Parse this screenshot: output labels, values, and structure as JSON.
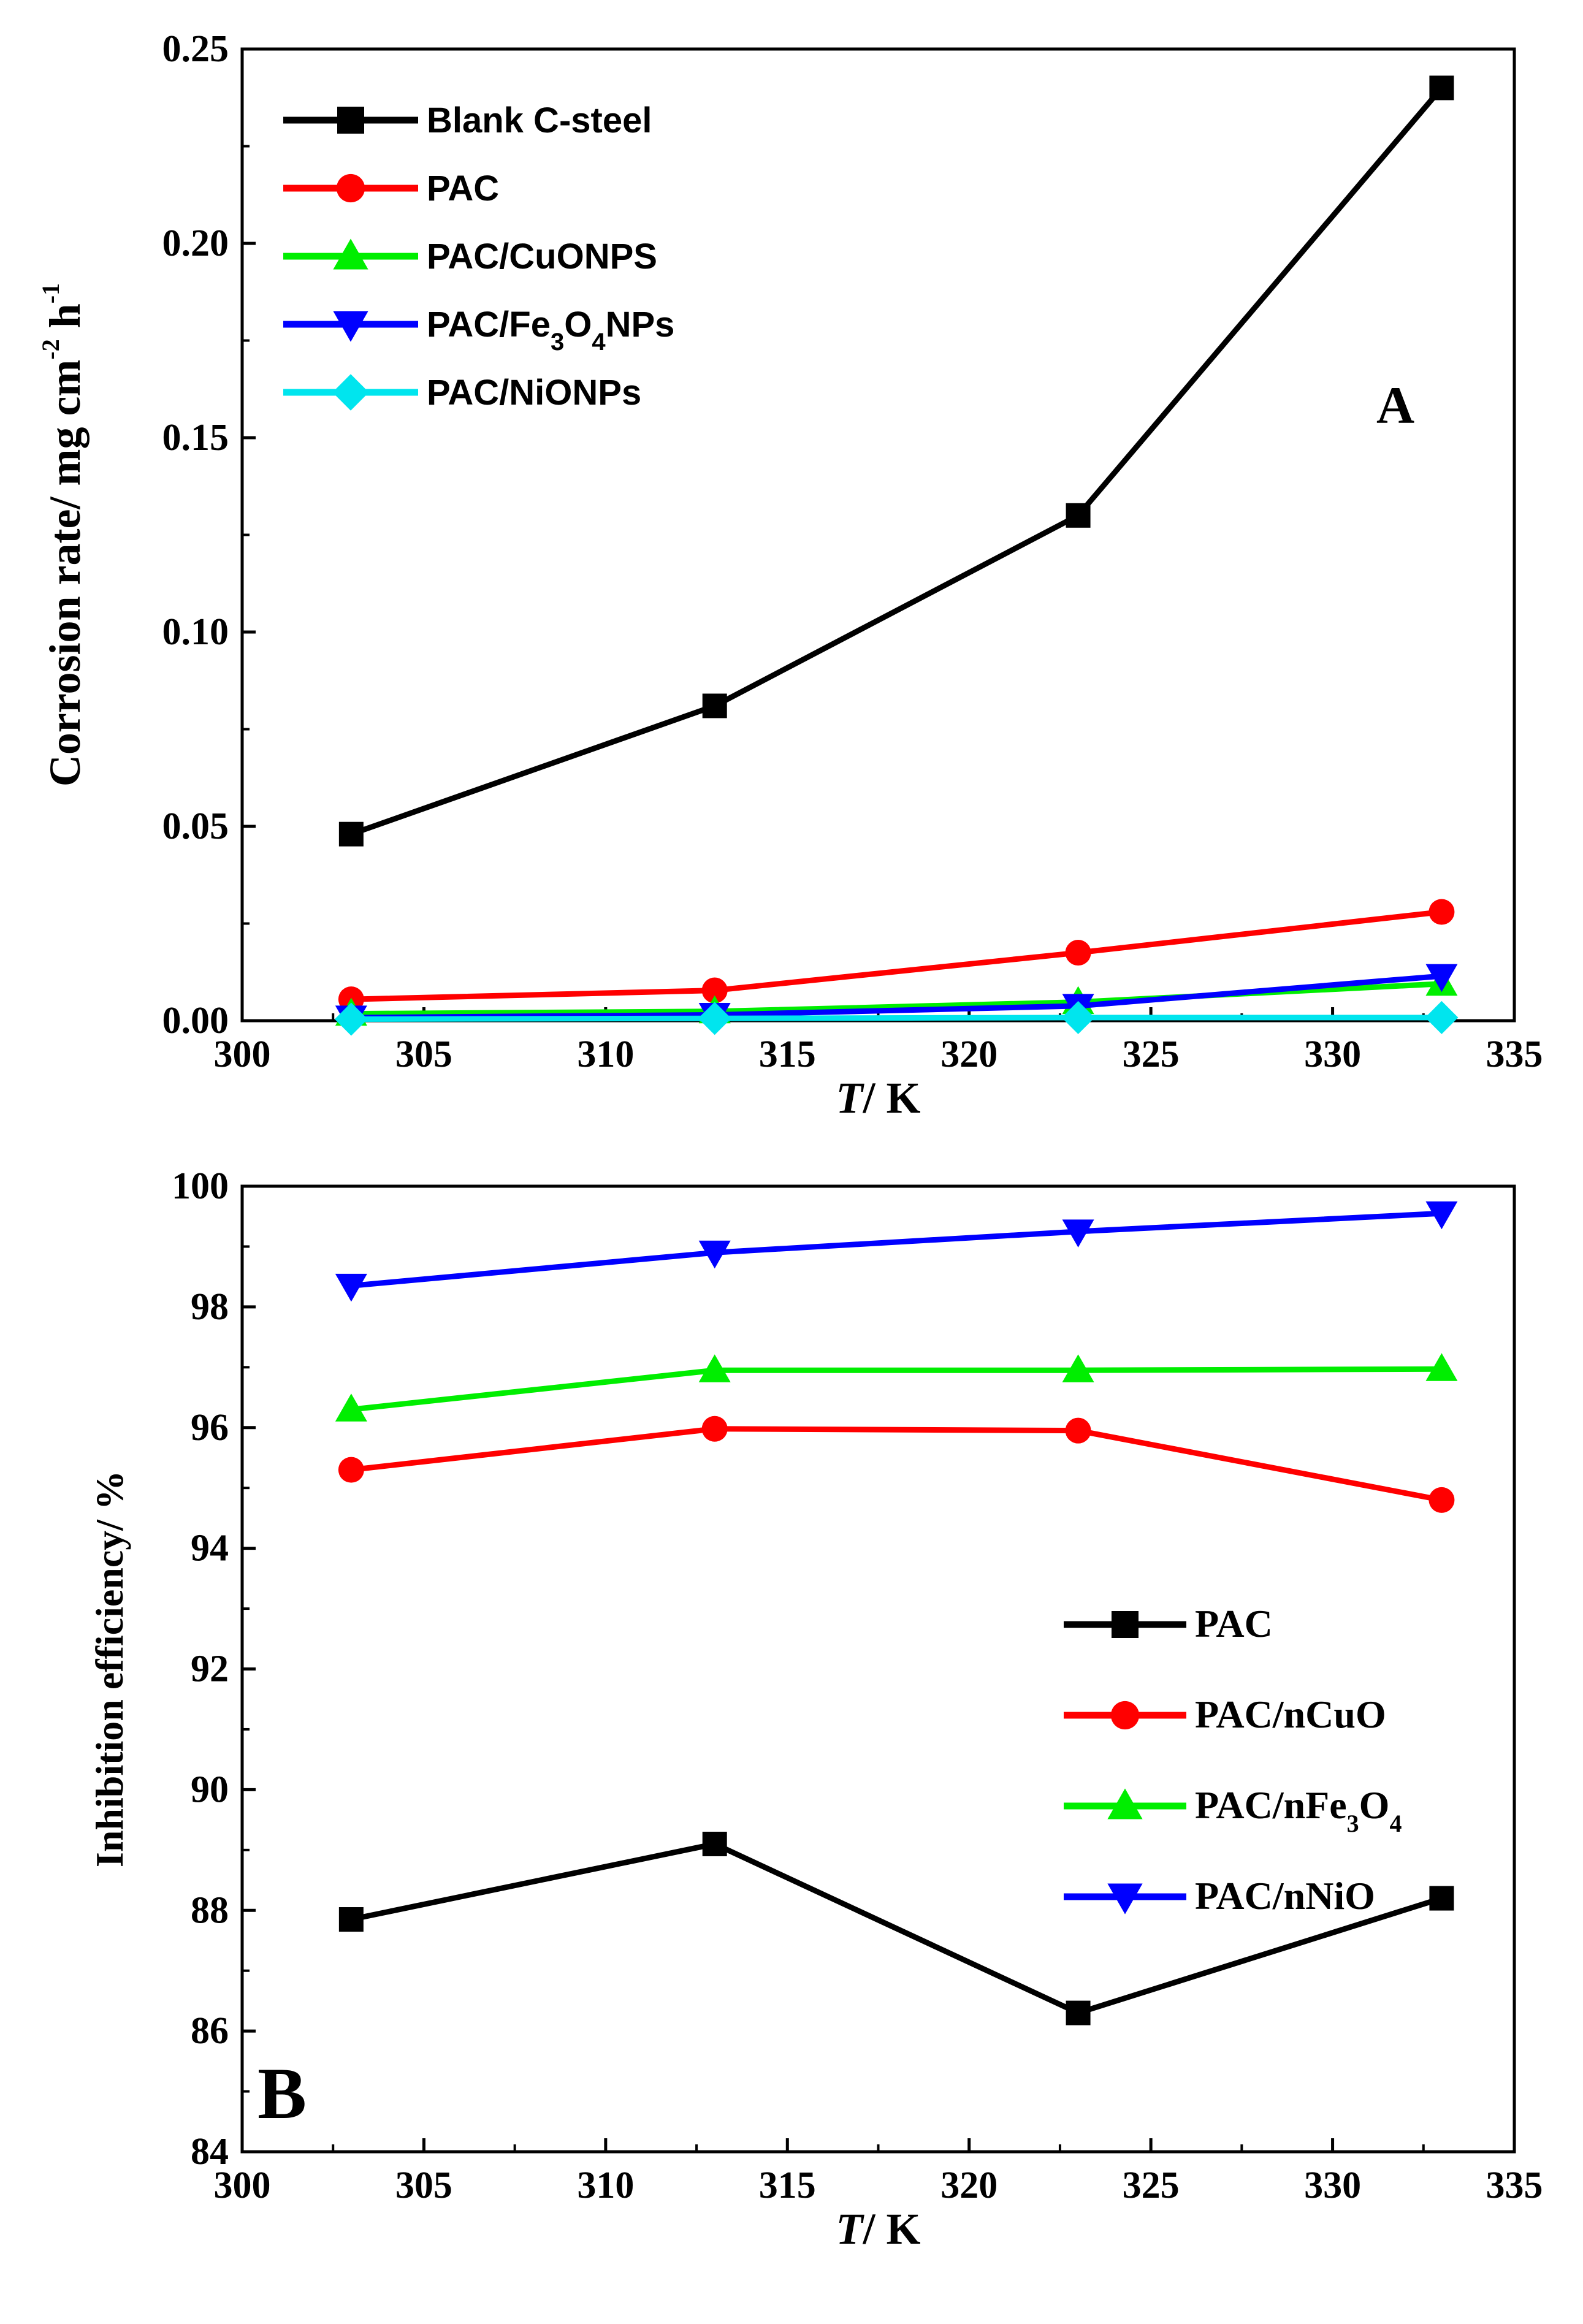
{
  "chart_data": [
    {
      "type": "line",
      "panel_label": "A",
      "xlabel_italic": "T",
      "xlabel_rest": "/ K",
      "ylabel": "Corrosion rate/ mg cm-2h-1",
      "ylabel_parts": [
        "Corrosion rate/ mg cm",
        "-2",
        " h",
        "-1"
      ],
      "xlim": [
        300,
        335
      ],
      "ylim": [
        0,
        0.25
      ],
      "xticks": [
        "300",
        "305",
        "310",
        "315",
        "320",
        "325",
        "330",
        "335"
      ],
      "yticks": [
        "0.00",
        "0.05",
        "0.10",
        "0.15",
        "0.20",
        "0.25"
      ],
      "legend_position": "top-left",
      "x": [
        303,
        313,
        323,
        333
      ],
      "series": [
        {
          "name": "Blank C-steel",
          "name_parts": [
            "Blank C-steel"
          ],
          "color": "#000000",
          "marker": "square",
          "values": [
            0.048,
            0.081,
            0.13,
            0.24
          ]
        },
        {
          "name": "PAC",
          "name_parts": [
            "PAC"
          ],
          "color": "#ff0000",
          "marker": "circle",
          "values": [
            0.0055,
            0.0078,
            0.0175,
            0.028
          ]
        },
        {
          "name": " PAC/CuONPS",
          "name_parts": [
            " PAC/CuONPS"
          ],
          "color": "#00ee00",
          "marker": "triangle-up",
          "values": [
            0.0018,
            0.0024,
            0.0048,
            0.0095
          ]
        },
        {
          "name": "PAC/Fe3O4NPs",
          "name_parts": [
            "PAC/Fe",
            "3",
            "O",
            "4",
            "NPs"
          ],
          "color": "#0000ff",
          "marker": "triangle-down",
          "values": [
            0.0008,
            0.0015,
            0.0038,
            0.0115
          ]
        },
        {
          "name": "PAC/NiONPs",
          "name_parts": [
            "PAC/NiONPs"
          ],
          "color": "#00e5ee",
          "marker": "diamond",
          "values": [
            0.0004,
            0.0006,
            0.0008,
            0.0008
          ]
        }
      ]
    },
    {
      "type": "line",
      "panel_label": "B",
      "xlabel_italic": "T",
      "xlabel_rest": "/ K",
      "ylabel": "Inhibition efficiency/ %",
      "xlim": [
        300,
        335
      ],
      "ylim": [
        84,
        100
      ],
      "xticks": [
        "300",
        "305",
        "310",
        "315",
        "320",
        "325",
        "330",
        "335"
      ],
      "yticks": [
        "84",
        "86",
        "88",
        "90",
        "92",
        "94",
        "96",
        "98",
        "100"
      ],
      "legend_position": "center-right",
      "x": [
        303,
        313,
        323,
        333
      ],
      "series": [
        {
          "name": "PAC",
          "name_parts": [
            "PAC"
          ],
          "color": "#000000",
          "marker": "square",
          "values": [
            87.85,
            89.1,
            86.3,
            88.2
          ]
        },
        {
          "name": "PAC/nCuO",
          "name_parts": [
            "PAC/nCuO"
          ],
          "color": "#ff0000",
          "marker": "circle",
          "values": [
            95.3,
            95.98,
            95.95,
            94.8
          ]
        },
        {
          "name": "PAC/nFe3O4",
          "name_parts": [
            "PAC/nFe",
            "3",
            "O",
            "4"
          ],
          "color": "#00ee00",
          "marker": "triangle-up",
          "values": [
            96.3,
            96.95,
            96.95,
            96.97
          ]
        },
        {
          "name": "PAC/nNiO",
          "name_parts": [
            "PAC/nNiO"
          ],
          "color": "#0000ff",
          "marker": "triangle-down",
          "values": [
            98.35,
            98.9,
            99.25,
            99.55
          ]
        }
      ]
    }
  ]
}
